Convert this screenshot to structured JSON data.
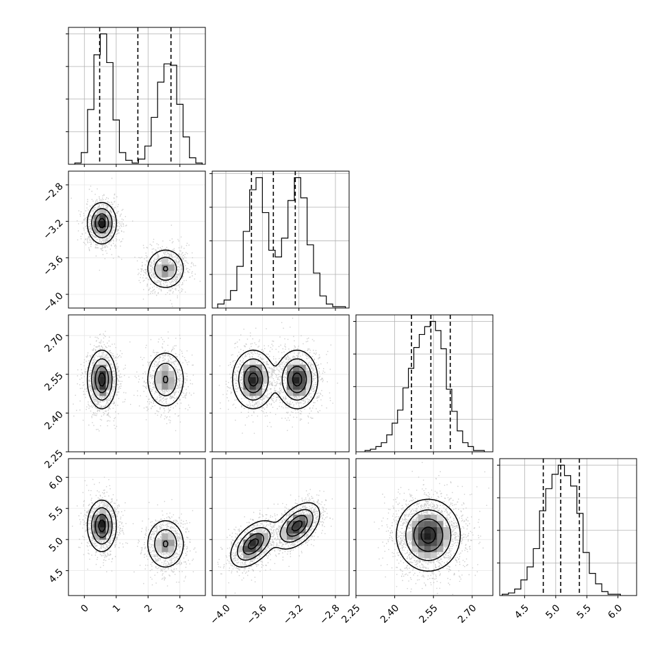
{
  "chart_data": {
    "type": "corner",
    "title": "",
    "grid": true,
    "parameters": [
      {
        "label": "",
        "range": [
          -0.5,
          3.8
        ],
        "ticks": [
          0,
          1,
          2,
          3
        ],
        "tick_labels": [
          "0",
          "1",
          "2",
          "3"
        ],
        "quantiles": [
          0.48,
          1.68,
          2.72
        ],
        "hist": {
          "bin_edges": [
            -0.3,
            -0.1,
            0.1,
            0.3,
            0.5,
            0.7,
            0.9,
            1.1,
            1.3,
            1.5,
            1.7,
            1.9,
            2.1,
            2.3,
            2.5,
            2.7,
            2.9,
            3.1,
            3.3,
            3.5,
            3.7
          ],
          "counts": [
            0.01,
            0.09,
            0.42,
            0.84,
            1.0,
            0.78,
            0.34,
            0.09,
            0.03,
            0.01,
            0.04,
            0.14,
            0.36,
            0.63,
            0.77,
            0.76,
            0.46,
            0.21,
            0.05,
            0.01
          ]
        }
      },
      {
        "label": "",
        "range": [
          -4.15,
          -2.65
        ],
        "ticks": [
          -4.0,
          -3.6,
          -3.2,
          -2.8
        ],
        "tick_labels": [
          "−4.0",
          "−3.6",
          "−3.2",
          "−2.8"
        ],
        "quantiles": [
          -3.72,
          -3.48,
          -3.24
        ],
        "hist": {
          "bin_edges": [
            -4.09,
            -4.02,
            -3.95,
            -3.88,
            -3.81,
            -3.74,
            -3.67,
            -3.6,
            -3.53,
            -3.46,
            -3.39,
            -3.32,
            -3.25,
            -3.18,
            -3.11,
            -3.04,
            -2.97,
            -2.9,
            -2.83,
            -2.76,
            -2.69
          ],
          "counts": [
            0.03,
            0.06,
            0.13,
            0.31,
            0.57,
            0.88,
            0.97,
            0.71,
            0.43,
            0.38,
            0.52,
            0.8,
            0.97,
            0.82,
            0.47,
            0.26,
            0.09,
            0.03,
            0.01,
            0.01
          ]
        }
      },
      {
        "label": "",
        "range": [
          2.25,
          2.78
        ],
        "ticks": [
          2.25,
          2.4,
          2.55,
          2.7
        ],
        "tick_labels": [
          "2.25",
          "2.40",
          "2.55",
          "2.70"
        ],
        "quantiles": [
          2.465,
          2.54,
          2.615
        ],
        "hist": {
          "bin_edges": [
            2.285,
            2.306,
            2.327,
            2.348,
            2.369,
            2.39,
            2.411,
            2.432,
            2.453,
            2.474,
            2.495,
            2.516,
            2.537,
            2.558,
            2.579,
            2.6,
            2.621,
            2.642,
            2.663,
            2.684,
            2.705,
            2.726,
            2.747
          ],
          "counts": [
            0.01,
            0.02,
            0.04,
            0.07,
            0.13,
            0.22,
            0.32,
            0.49,
            0.64,
            0.8,
            0.9,
            0.96,
            1.0,
            0.93,
            0.79,
            0.48,
            0.31,
            0.16,
            0.07,
            0.04,
            0.01,
            0.01
          ]
        }
      },
      {
        "label": "",
        "range": [
          4.1,
          6.3
        ],
        "ticks": [
          4.5,
          5.0,
          5.5,
          6.0
        ],
        "tick_labels": [
          "4.5",
          "5.0",
          "5.5",
          "6.0"
        ],
        "quantiles": [
          4.8,
          5.08,
          5.38
        ],
        "hist": {
          "bin_edges": [
            4.14,
            4.24,
            4.34,
            4.44,
            4.54,
            4.64,
            4.74,
            4.84,
            4.94,
            5.04,
            5.14,
            5.24,
            5.34,
            5.44,
            5.54,
            5.64,
            5.74,
            5.84,
            5.94,
            6.04
          ],
          "counts": [
            0.01,
            0.02,
            0.05,
            0.12,
            0.22,
            0.36,
            0.65,
            0.82,
            0.93,
            1.0,
            0.92,
            0.84,
            0.63,
            0.33,
            0.17,
            0.09,
            0.03,
            0.01,
            0.01
          ]
        }
      }
    ],
    "pairs": [
      {
        "row": 1,
        "col": 0,
        "modes": [
          {
            "mx": 0.55,
            "my": -3.22,
            "sx": 0.22,
            "sy": 0.11,
            "rho": 0.0,
            "w": 1.2
          },
          {
            "mx": 2.55,
            "my": -3.72,
            "sx": 0.3,
            "sy": 0.11,
            "rho": 0.0,
            "w": 0.8
          }
        ]
      },
      {
        "row": 2,
        "col": 0,
        "modes": [
          {
            "mx": 0.55,
            "my": 2.53,
            "sx": 0.22,
            "sy": 0.055,
            "rho": 0.0,
            "w": 1.2
          },
          {
            "mx": 2.55,
            "my": 2.53,
            "sx": 0.3,
            "sy": 0.055,
            "rho": 0.0,
            "w": 0.8
          }
        ]
      },
      {
        "row": 2,
        "col": 1,
        "modes": [
          {
            "mx": -3.7,
            "my": 2.53,
            "sx": 0.11,
            "sy": 0.055,
            "rho": 0.0,
            "w": 1.0
          },
          {
            "mx": -3.22,
            "my": 2.53,
            "sx": 0.11,
            "sy": 0.055,
            "rho": 0.0,
            "w": 1.0
          }
        ]
      },
      {
        "row": 3,
        "col": 0,
        "modes": [
          {
            "mx": 0.55,
            "my": 5.22,
            "sx": 0.22,
            "sy": 0.2,
            "rho": 0.0,
            "w": 1.2
          },
          {
            "mx": 2.55,
            "my": 4.93,
            "sx": 0.3,
            "sy": 0.2,
            "rho": 0.0,
            "w": 0.8
          }
        ]
      },
      {
        "row": 3,
        "col": 1,
        "modes": [
          {
            "mx": -3.7,
            "my": 4.93,
            "sx": 0.12,
            "sy": 0.18,
            "rho": 0.5,
            "w": 1.0
          },
          {
            "mx": -3.22,
            "my": 5.22,
            "sx": 0.12,
            "sy": 0.18,
            "rho": 0.5,
            "w": 1.0
          }
        ]
      },
      {
        "row": 3,
        "col": 2,
        "modes": [
          {
            "mx": 2.53,
            "my": 5.07,
            "sx": 0.06,
            "sy": 0.28,
            "rho": 0.0,
            "w": 1.0
          }
        ]
      }
    ],
    "colors": {
      "line": "#000000",
      "grid": "#b0b0b0",
      "points": "#bcbcbc"
    }
  }
}
